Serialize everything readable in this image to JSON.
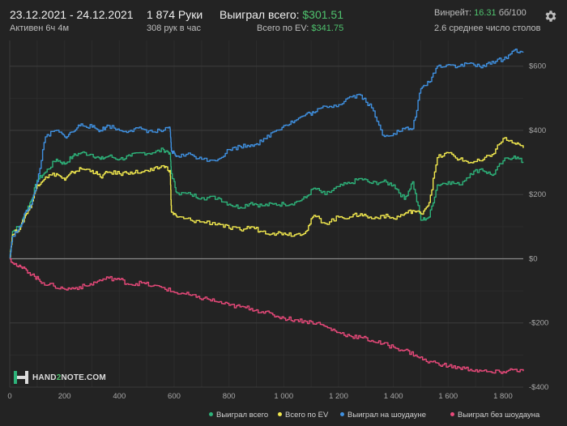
{
  "header": {
    "date_range": "23.12.2021 - 24.12.2021",
    "active": "Активен 6ч 4м",
    "hands": "1 874 Руки",
    "per_hour": "308 рук в час",
    "won_label": "Выиграл всего:",
    "won_value": "$301.51",
    "ev_label": "Всего по EV:",
    "ev_value": "$341.75",
    "winrate_label": "Винрейт:",
    "winrate_value": "16.31",
    "winrate_unit": "бб/100",
    "tables": "2.6 среднее число столов"
  },
  "icons": {
    "settings": "gear-icon"
  },
  "logo": {
    "pre": "HAND",
    "two": "2",
    "post": "NOTE.COM"
  },
  "legend": [
    {
      "label": "Выиграл всего",
      "color": "#2db37a"
    },
    {
      "label": "Всего по EV",
      "color": "#f2e94e"
    },
    {
      "label": "Выиграл на шоудауне",
      "color": "#3f90e0"
    },
    {
      "label": "Выиграл без шоудауна",
      "color": "#e8497a"
    }
  ],
  "chart_data": {
    "type": "line",
    "xlim": [
      0,
      1874
    ],
    "ylim": [
      -400,
      680
    ],
    "x_ticks": [
      {
        "v": 0,
        "label": "0"
      },
      {
        "v": 200,
        "label": "200"
      },
      {
        "v": 400,
        "label": "400"
      },
      {
        "v": 600,
        "label": "600"
      },
      {
        "v": 800,
        "label": "800"
      },
      {
        "v": 1000,
        "label": "1 000"
      },
      {
        "v": 1200,
        "label": "1 200"
      },
      {
        "v": 1400,
        "label": "1 400"
      },
      {
        "v": 1600,
        "label": "1 600"
      },
      {
        "v": 1800,
        "label": "1 800"
      }
    ],
    "y_ticks": [
      {
        "v": 600,
        "label": "$600"
      },
      {
        "v": 400,
        "label": "$400"
      },
      {
        "v": 200,
        "label": "$200"
      },
      {
        "v": 0,
        "label": "$0"
      },
      {
        "v": -200,
        "label": "-$200"
      },
      {
        "v": -400,
        "label": "-$400"
      }
    ],
    "grid": true,
    "legend_position": "bottom-right",
    "series": [
      {
        "name": "Выиграл всего",
        "color": "#2db37a",
        "points": [
          [
            0,
            0
          ],
          [
            10,
            85
          ],
          [
            40,
            105
          ],
          [
            60,
            150
          ],
          [
            80,
            185
          ],
          [
            100,
            245
          ],
          [
            130,
            270
          ],
          [
            170,
            310
          ],
          [
            200,
            295
          ],
          [
            230,
            320
          ],
          [
            260,
            330
          ],
          [
            300,
            325
          ],
          [
            330,
            310
          ],
          [
            360,
            320
          ],
          [
            400,
            310
          ],
          [
            440,
            320
          ],
          [
            480,
            330
          ],
          [
            520,
            330
          ],
          [
            560,
            340
          ],
          [
            585,
            330
          ],
          [
            590,
            265
          ],
          [
            610,
            205
          ],
          [
            660,
            200
          ],
          [
            700,
            190
          ],
          [
            760,
            190
          ],
          [
            800,
            170
          ],
          [
            840,
            160
          ],
          [
            880,
            175
          ],
          [
            920,
            165
          ],
          [
            960,
            170
          ],
          [
            1000,
            170
          ],
          [
            1040,
            175
          ],
          [
            1080,
            190
          ],
          [
            1110,
            220
          ],
          [
            1150,
            200
          ],
          [
            1200,
            225
          ],
          [
            1240,
            235
          ],
          [
            1280,
            250
          ],
          [
            1320,
            235
          ],
          [
            1360,
            240
          ],
          [
            1400,
            230
          ],
          [
            1440,
            185
          ],
          [
            1470,
            240
          ],
          [
            1500,
            120
          ],
          [
            1530,
            130
          ],
          [
            1560,
            230
          ],
          [
            1600,
            240
          ],
          [
            1640,
            230
          ],
          [
            1680,
            265
          ],
          [
            1720,
            280
          ],
          [
            1760,
            260
          ],
          [
            1800,
            305
          ],
          [
            1840,
            320
          ],
          [
            1874,
            300
          ]
        ]
      },
      {
        "name": "Всего по EV",
        "color": "#f2e94e",
        "points": [
          [
            0,
            0
          ],
          [
            10,
            75
          ],
          [
            40,
            100
          ],
          [
            60,
            140
          ],
          [
            80,
            170
          ],
          [
            100,
            230
          ],
          [
            130,
            255
          ],
          [
            170,
            265
          ],
          [
            200,
            245
          ],
          [
            230,
            270
          ],
          [
            260,
            280
          ],
          [
            300,
            275
          ],
          [
            330,
            255
          ],
          [
            360,
            270
          ],
          [
            400,
            265
          ],
          [
            440,
            270
          ],
          [
            480,
            270
          ],
          [
            520,
            275
          ],
          [
            560,
            290
          ],
          [
            585,
            275
          ],
          [
            590,
            145
          ],
          [
            610,
            130
          ],
          [
            660,
            120
          ],
          [
            700,
            115
          ],
          [
            760,
            110
          ],
          [
            800,
            95
          ],
          [
            840,
            90
          ],
          [
            880,
            100
          ],
          [
            920,
            85
          ],
          [
            960,
            80
          ],
          [
            1000,
            80
          ],
          [
            1040,
            75
          ],
          [
            1080,
            85
          ],
          [
            1110,
            135
          ],
          [
            1150,
            110
          ],
          [
            1200,
            130
          ],
          [
            1240,
            130
          ],
          [
            1280,
            140
          ],
          [
            1320,
            125
          ],
          [
            1360,
            135
          ],
          [
            1400,
            125
          ],
          [
            1440,
            140
          ],
          [
            1470,
            150
          ],
          [
            1500,
            140
          ],
          [
            1530,
            175
          ],
          [
            1560,
            315
          ],
          [
            1600,
            330
          ],
          [
            1640,
            310
          ],
          [
            1680,
            300
          ],
          [
            1720,
            305
          ],
          [
            1760,
            325
          ],
          [
            1800,
            375
          ],
          [
            1840,
            360
          ],
          [
            1874,
            345
          ]
        ]
      },
      {
        "name": "Выиграл на шоудауне",
        "color": "#3f90e0",
        "points": [
          [
            0,
            0
          ],
          [
            10,
            70
          ],
          [
            40,
            100
          ],
          [
            60,
            150
          ],
          [
            80,
            170
          ],
          [
            100,
            240
          ],
          [
            130,
            380
          ],
          [
            170,
            400
          ],
          [
            200,
            380
          ],
          [
            230,
            395
          ],
          [
            260,
            420
          ],
          [
            300,
            410
          ],
          [
            330,
            400
          ],
          [
            360,
            415
          ],
          [
            400,
            400
          ],
          [
            440,
            400
          ],
          [
            480,
            405
          ],
          [
            520,
            395
          ],
          [
            560,
            400
          ],
          [
            585,
            405
          ],
          [
            590,
            335
          ],
          [
            610,
            320
          ],
          [
            660,
            325
          ],
          [
            700,
            310
          ],
          [
            760,
            310
          ],
          [
            800,
            340
          ],
          [
            840,
            350
          ],
          [
            880,
            355
          ],
          [
            920,
            365
          ],
          [
            960,
            395
          ],
          [
            1000,
            415
          ],
          [
            1040,
            430
          ],
          [
            1080,
            450
          ],
          [
            1110,
            455
          ],
          [
            1150,
            475
          ],
          [
            1200,
            480
          ],
          [
            1240,
            505
          ],
          [
            1280,
            510
          ],
          [
            1320,
            470
          ],
          [
            1360,
            385
          ],
          [
            1400,
            390
          ],
          [
            1440,
            405
          ],
          [
            1470,
            405
          ],
          [
            1500,
            530
          ],
          [
            1530,
            550
          ],
          [
            1560,
            600
          ],
          [
            1600,
            605
          ],
          [
            1640,
            600
          ],
          [
            1680,
            610
          ],
          [
            1720,
            595
          ],
          [
            1760,
            615
          ],
          [
            1800,
            620
          ],
          [
            1840,
            650
          ],
          [
            1874,
            645
          ]
        ]
      },
      {
        "name": "Выиграл без шоудауна",
        "color": "#e8497a",
        "points": [
          [
            0,
            0
          ],
          [
            30,
            -25
          ],
          [
            60,
            -35
          ],
          [
            90,
            -55
          ],
          [
            120,
            -75
          ],
          [
            160,
            -85
          ],
          [
            200,
            -95
          ],
          [
            240,
            -90
          ],
          [
            280,
            -85
          ],
          [
            320,
            -70
          ],
          [
            360,
            -60
          ],
          [
            400,
            -65
          ],
          [
            440,
            -80
          ],
          [
            480,
            -75
          ],
          [
            520,
            -85
          ],
          [
            560,
            -90
          ],
          [
            600,
            -105
          ],
          [
            640,
            -110
          ],
          [
            680,
            -120
          ],
          [
            720,
            -125
          ],
          [
            760,
            -135
          ],
          [
            800,
            -145
          ],
          [
            840,
            -150
          ],
          [
            880,
            -155
          ],
          [
            920,
            -165
          ],
          [
            960,
            -175
          ],
          [
            1000,
            -185
          ],
          [
            1040,
            -190
          ],
          [
            1080,
            -195
          ],
          [
            1120,
            -200
          ],
          [
            1160,
            -215
          ],
          [
            1200,
            -230
          ],
          [
            1240,
            -240
          ],
          [
            1280,
            -245
          ],
          [
            1320,
            -255
          ],
          [
            1360,
            -265
          ],
          [
            1400,
            -275
          ],
          [
            1440,
            -285
          ],
          [
            1480,
            -300
          ],
          [
            1520,
            -320
          ],
          [
            1560,
            -325
          ],
          [
            1600,
            -335
          ],
          [
            1640,
            -340
          ],
          [
            1680,
            -345
          ],
          [
            1720,
            -350
          ],
          [
            1760,
            -355
          ],
          [
            1800,
            -352
          ],
          [
            1840,
            -345
          ],
          [
            1874,
            -350
          ]
        ]
      }
    ]
  }
}
